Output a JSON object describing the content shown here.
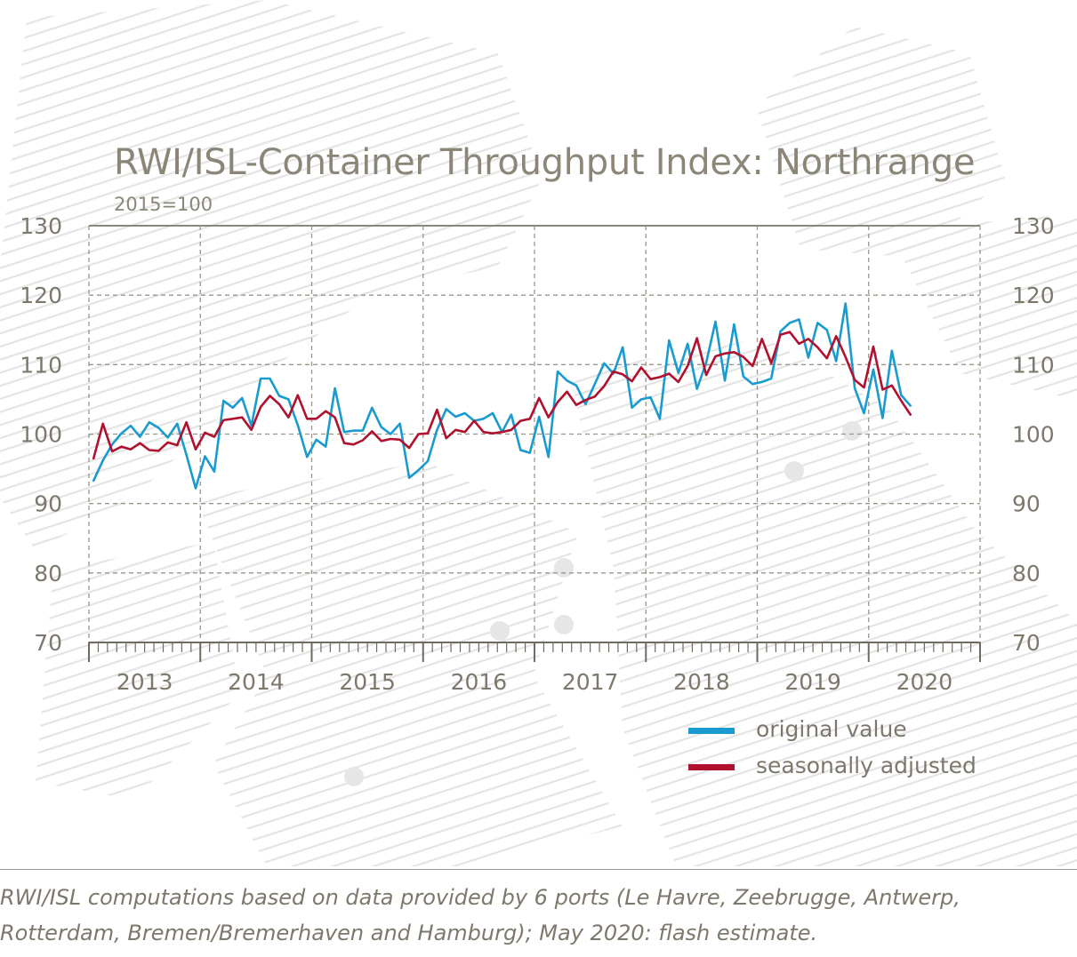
{
  "chart_data": {
    "type": "line",
    "title": "RWI/ISL-Container Throughput Index: Northrange",
    "subtitle": "2015=100",
    "ylim": [
      70,
      130
    ],
    "yticks": [
      70,
      80,
      90,
      100,
      110,
      120,
      130
    ],
    "year_labels": [
      "2013",
      "2014",
      "2015",
      "2016",
      "2017",
      "2018",
      "2019",
      "2020"
    ],
    "x_start": "2013-01",
    "x_end": "2020-12",
    "grid": true,
    "legend_position": "bottom-right",
    "series": [
      {
        "name": "original value",
        "color": "#1a9bd0",
        "values": [
          93.3,
          96.2,
          98.5,
          100.1,
          101.2,
          99.6,
          101.7,
          100.9,
          99.5,
          101.5,
          97.0,
          92.2,
          96.8,
          94.6,
          104.8,
          103.8,
          105.2,
          101.2,
          108.0,
          108.0,
          105.5,
          105.0,
          101.3,
          96.7,
          99.2,
          98.2,
          106.6,
          100.3,
          100.5,
          100.5,
          103.8,
          101.0,
          100.0,
          101.5,
          93.7,
          94.8,
          96.1,
          100.6,
          103.6,
          102.5,
          103.0,
          101.9,
          102.2,
          103.0,
          100.3,
          102.8,
          97.7,
          97.3,
          102.5,
          96.7,
          109.0,
          107.7,
          107.0,
          104.3,
          107.2,
          110.2,
          108.7,
          112.5,
          103.8,
          105.0,
          105.3,
          102.2,
          113.5,
          108.8,
          113.0,
          106.5,
          110.3,
          116.2,
          107.7,
          115.8,
          108.3,
          107.2,
          107.5,
          108.0,
          114.8,
          116.0,
          116.5,
          111.0,
          116.0,
          115.0,
          110.5,
          118.8,
          106.6,
          103.0,
          109.3,
          102.3,
          112.0,
          105.6,
          104.1
        ]
      },
      {
        "name": "seasonally adjusted",
        "color": "#b0112e",
        "values": [
          96.5,
          101.5,
          97.5,
          98.2,
          97.8,
          98.7,
          97.7,
          97.6,
          98.8,
          98.4,
          101.7,
          97.8,
          100.2,
          99.6,
          102.0,
          102.2,
          102.4,
          100.6,
          103.9,
          105.5,
          104.3,
          102.4,
          105.6,
          102.2,
          102.2,
          103.3,
          102.4,
          98.7,
          98.5,
          99.1,
          100.4,
          99.0,
          99.3,
          99.2,
          98.0,
          100.0,
          100.1,
          103.5,
          99.4,
          100.6,
          100.3,
          101.9,
          100.3,
          100.1,
          100.3,
          100.6,
          101.9,
          102.2,
          105.2,
          102.4,
          104.6,
          106.1,
          104.2,
          104.9,
          105.4,
          106.9,
          109.0,
          108.6,
          107.6,
          109.6,
          107.9,
          108.2,
          108.7,
          107.5,
          109.8,
          113.8,
          108.5,
          111.2,
          111.6,
          111.8,
          111.1,
          109.8,
          113.7,
          110.2,
          114.3,
          114.7,
          113.0,
          113.7,
          112.5,
          110.9,
          114.1,
          111.1,
          107.8,
          106.7,
          112.6,
          106.4,
          107.0,
          104.8,
          102.8
        ]
      }
    ]
  },
  "legend": {
    "original_label": "original value",
    "adjusted_label": "seasonally adjusted"
  },
  "note": {
    "line1": "RWI/ISL computations based on data provided by 6 ports (Le Havre, Zeebrugge, Antwerp,",
    "line2": "Rotterdam, Bremen/Bremerhaven and Hamburg); May 2020: flash estimate."
  }
}
